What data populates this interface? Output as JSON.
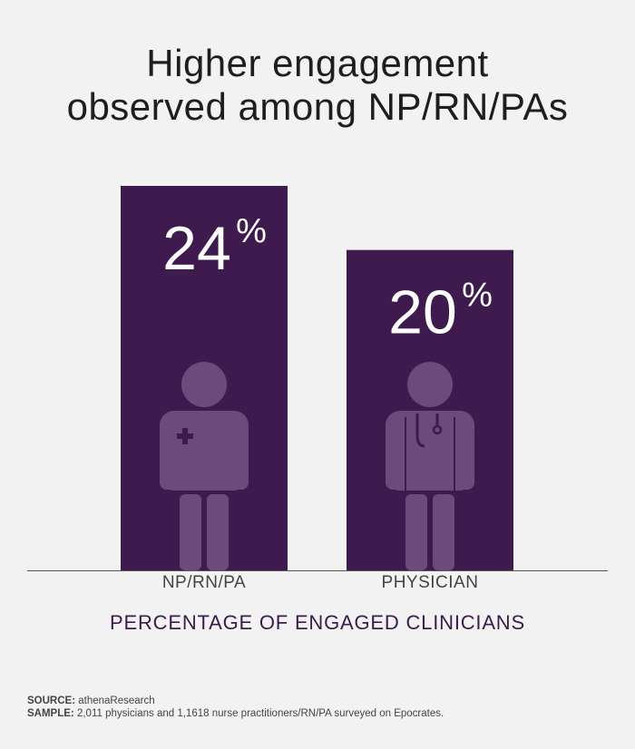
{
  "title_lines": [
    "Higher engagement",
    "observed among NP/RN/PAs"
  ],
  "chart_data": {
    "type": "bar",
    "categories": [
      "NP/RN/PA",
      "PHYSICIAN"
    ],
    "values": [
      24,
      20
    ],
    "value_labels": [
      "24",
      "20"
    ],
    "value_suffix": "%",
    "xlabel": "PERCENTAGE OF ENGAGED CLINICIANS",
    "ylabel": "",
    "ylim": [
      0,
      24
    ],
    "grid": false,
    "bar_color": "#3f1a4e",
    "icon_color": "#6e4a7b",
    "icons": [
      "nurse-icon",
      "physician-icon"
    ]
  },
  "footer": {
    "source_label": "SOURCE:",
    "source_text": "athenaResearch",
    "sample_label": "SAMPLE:",
    "sample_text": "2,011 physicians and 1,1618 nurse practitioners/RN/PA surveyed on Epocrates."
  }
}
